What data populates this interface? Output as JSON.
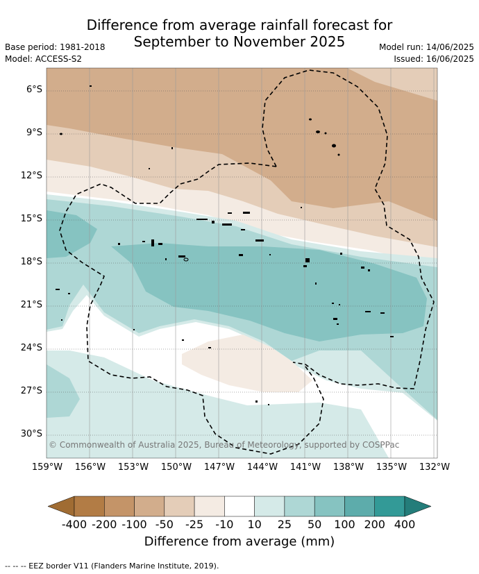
{
  "title_line1": "Difference from average rainfall forecast for",
  "title_line2": "September to November 2025",
  "meta": {
    "base_period": "Base period: 1981-2018",
    "model": "Model: ACCESS-S2",
    "model_run": "Model run: 14/06/2025",
    "issued": "Issued: 16/06/2025"
  },
  "copyright": "© Commonwealth of Australia 2025, Bureau of Meteorology, supported by COSPPac",
  "footnote": "-- -- -- EEZ border V11 (Flanders Marine Institute, 2019).",
  "lat_labels": [
    "6°S",
    "9°S",
    "12°S",
    "15°S",
    "18°S",
    "21°S",
    "24°S",
    "27°S",
    "30°S"
  ],
  "lon_labels": [
    "159°W",
    "156°W",
    "153°W",
    "150°W",
    "147°W",
    "144°W",
    "141°W",
    "138°W",
    "135°W",
    "132°W"
  ],
  "colorbar": {
    "title": "Difference from average (mm)",
    "labels": [
      "-400",
      "-200",
      "-100",
      "-50",
      "-25",
      "-10",
      "10",
      "25",
      "50",
      "100",
      "200",
      "400"
    ],
    "colors": [
      "#a06c33",
      "#b27c45",
      "#c49468",
      "#d2ad8c",
      "#e4cdb8",
      "#f4ebe3",
      "#ffffff",
      "#d5eae8",
      "#aed7d5",
      "#86c3c1",
      "#5dacab",
      "#339a97",
      "#247d7a"
    ]
  }
}
